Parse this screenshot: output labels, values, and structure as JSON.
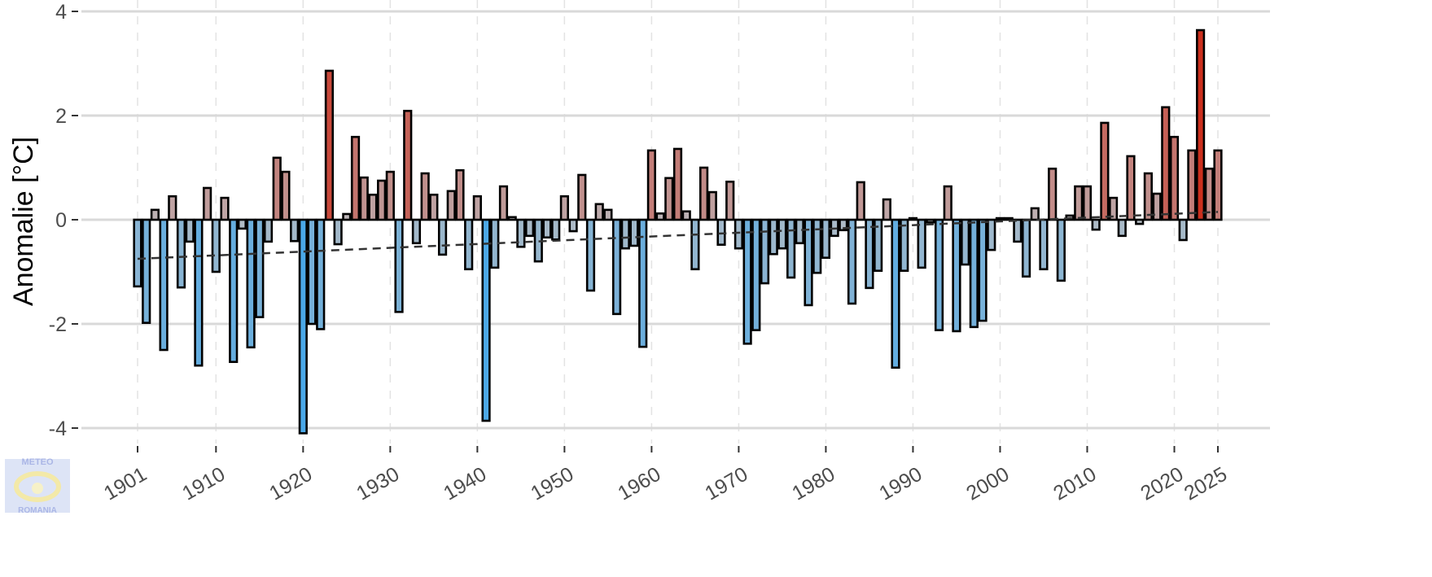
{
  "chart_data": {
    "type": "bar",
    "title": "",
    "xlabel": "",
    "ylabel": "Anomalie [°C]",
    "ylim": [
      -4.3,
      4.2
    ],
    "yticks": [
      -4,
      -2,
      0,
      2,
      4
    ],
    "xticks": [
      1901,
      1910,
      1920,
      1930,
      1940,
      1950,
      1960,
      1970,
      1980,
      1990,
      2000,
      2010,
      2020,
      2025
    ],
    "grid": true,
    "x_start": 1901,
    "values": [
      -1.28,
      -1.98,
      0.19,
      -2.5,
      0.45,
      -1.3,
      -0.42,
      -2.8,
      0.61,
      -1.0,
      0.42,
      -2.73,
      -0.17,
      -2.45,
      -1.87,
      -0.42,
      1.19,
      0.92,
      -0.41,
      -4.1,
      -2.0,
      -2.1,
      2.86,
      -0.47,
      0.11,
      1.59,
      0.81,
      0.48,
      0.75,
      0.92,
      -1.77,
      2.09,
      -0.45,
      0.89,
      0.48,
      -0.67,
      0.55,
      0.95,
      -0.95,
      0.45,
      -3.86,
      -0.92,
      0.64,
      0.05,
      -0.52,
      -0.31,
      -0.8,
      -0.34,
      -0.38,
      0.45,
      -0.22,
      0.86,
      -1.36,
      0.3,
      0.19,
      -1.81,
      -0.55,
      -0.5,
      -2.44,
      1.33,
      0.12,
      0.8,
      1.36,
      0.16,
      -0.95,
      1.0,
      0.53,
      -0.48,
      0.73,
      -0.55,
      -2.38,
      -2.12,
      -1.22,
      -0.66,
      -0.55,
      -1.11,
      -0.45,
      -1.64,
      -1.02,
      -0.73,
      -0.31,
      -0.2,
      -1.61,
      0.72,
      -1.31,
      -0.98,
      0.39,
      -2.84,
      -0.98,
      0.03,
      -0.92,
      -0.05,
      -2.12,
      0.64,
      -2.14,
      -0.86,
      -2.06,
      -1.94,
      -0.58,
      0.03,
      0.03,
      -0.42,
      -1.09,
      0.22,
      -0.95,
      0.98,
      -1.17,
      0.08,
      0.64,
      0.64,
      -0.19,
      1.86,
      0.42,
      -0.31,
      1.22,
      -0.08,
      0.89,
      0.5,
      2.16,
      1.59,
      -0.39,
      1.33,
      3.64,
      0.98,
      1.33
    ],
    "trend": {
      "start_year": 1901,
      "start_value": -0.75,
      "end_year": 2025,
      "end_value": 0.15,
      "style": "dashed"
    },
    "colors": {
      "cold": "#4aa8e8",
      "neutral": "#bcbec2",
      "warm": "#cc2e1c"
    }
  },
  "logo": {
    "top": "METEO",
    "bottom": "ROMANIA"
  }
}
